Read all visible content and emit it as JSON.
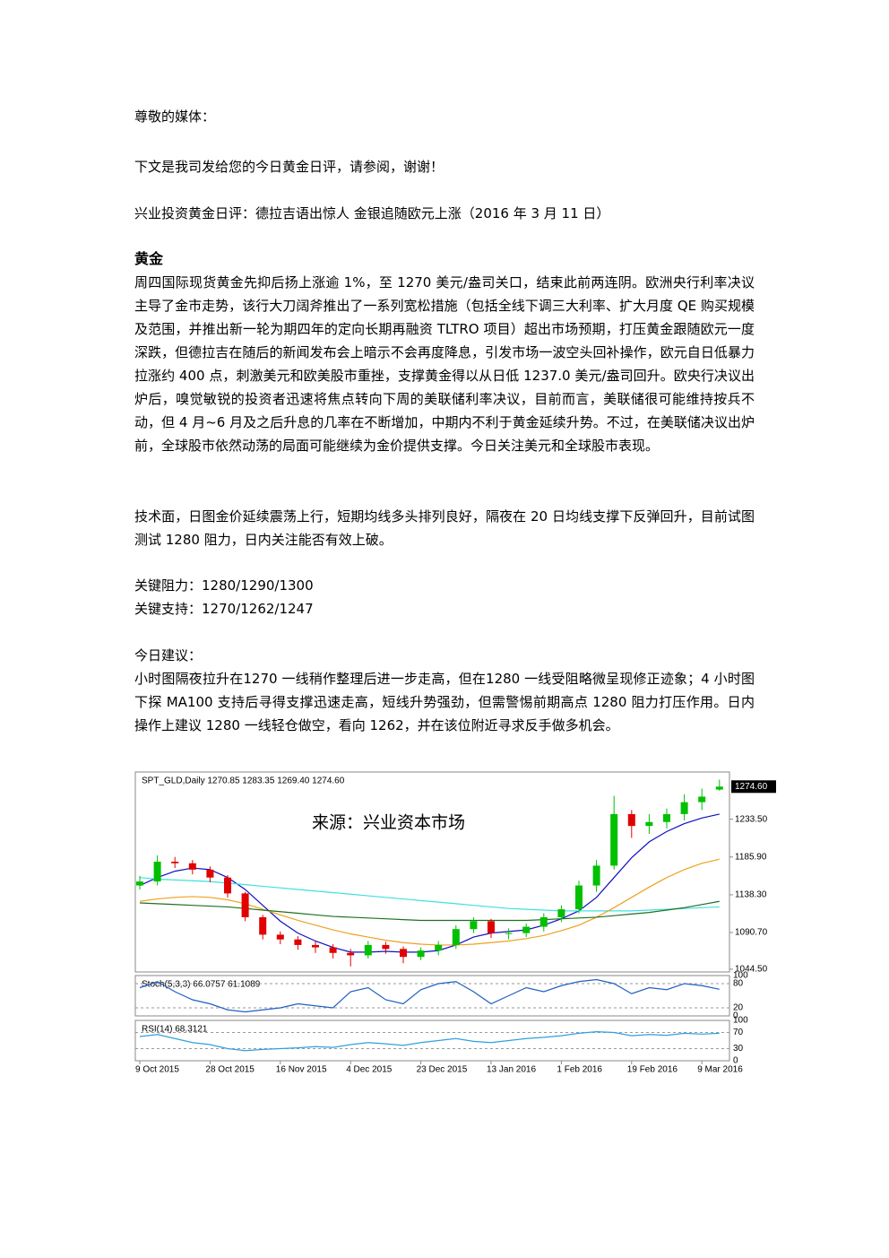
{
  "doc": {
    "greeting": "尊敬的媒体：",
    "intro": "下文是我司发给您的今日黄金日评，请参阅，谢谢！",
    "headline": "兴业投资黄金日评：德拉吉语出惊人 金银追随欧元上涨（2016 年 3 月 11 日）",
    "section_title": "黄金",
    "paragraphs": [
      "周四国际现货黄金先抑后扬上涨逾 1%，至 1270 美元/盎司关口，结束此前两连阴。欧洲央行利率决议主导了金市走势，该行大刀阔斧推出了一系列宽松措施（包括全线下调三大利率、扩大月度 QE 购买规模及范围，并推出新一轮为期四年的定向长期再融资 TLTRO 项目）超出市场预期，打压黄金跟随欧元一度深跌，但德拉吉在随后的新闻发布会上暗示不会再度降息，引发市场一波空头回补操作，欧元自日低暴力拉涨约 400 点，刺激美元和欧美股市重挫，支撑黄金得以从日低 1237.0 美元/盎司回升。欧央行决议出炉后，嗅觉敏锐的投资者迅速将焦点转向下周的美联储利率决议，目前而言，美联储很可能维持按兵不动，但 4 月~6 月及之后升息的几率在不断增加，中期内不利于黄金延续升势。不过，在美联储决议出炉前，全球股市依然动荡的局面可能继续为金价提供支撑。今日关注美元和全球股市表现。",
      "技术面，日图金价延续震荡上行，短期均线多头排列良好，隔夜在 20 日均线支撑下反弹回升，目前试图测试 1280 阻力，日内关注能否有效上破。"
    ],
    "key_resistance": "关键阻力：1280/1290/1300",
    "key_support": "关键支持：1270/1262/1247",
    "advice_title": "今日建议：",
    "advice": "小时图隔夜拉升在1270 一线稍作整理后进一步走高，但在1280 一线受阻略微呈现修正迹象；4 小时图下探 MA100 支持后寻得支撑迅速走高，短线升势强劲，但需警惕前期高点 1280 阻力打压作用。日内操作上建议 1280 一线轻仓做空，看向 1262，并在该位附近寻求反手做多机会。"
  },
  "chart_data": {
    "type": "candlestick",
    "header": "SPT_GLD,Daily  1270.85 1283.35 1269.40 1274.60",
    "watermark": "来源：兴业资本市场",
    "categories": [
      "9 Oct 2015",
      null,
      null,
      null,
      "28 Oct 2015",
      null,
      null,
      null,
      "16 Nov 2015",
      null,
      null,
      null,
      "4 Dec 2015",
      null,
      null,
      null,
      "23 Dec 2015",
      null,
      null,
      null,
      "13 Jan 2016",
      null,
      null,
      null,
      "1 Feb 2016",
      null,
      null,
      null,
      "19 Feb 2016",
      null,
      null,
      null,
      "9 Mar 2016",
      null
    ],
    "open": [
      1150,
      1155,
      1180,
      1178,
      1170,
      1160,
      1140,
      1110,
      1088,
      1082,
      1075,
      1072,
      1065,
      1062,
      1075,
      1070,
      1060,
      1068,
      1075,
      1095,
      1105,
      1090,
      1090,
      1098,
      1110,
      1120,
      1150,
      1175,
      1240,
      1225,
      1230,
      1240,
      1255,
      1270.85
    ],
    "high": [
      1162,
      1188,
      1186,
      1182,
      1174,
      1163,
      1142,
      1113,
      1092,
      1086,
      1080,
      1076,
      1070,
      1080,
      1079,
      1073,
      1072,
      1080,
      1100,
      1110,
      1108,
      1096,
      1102,
      1115,
      1125,
      1156,
      1182,
      1263,
      1245,
      1240,
      1247,
      1265,
      1272,
      1283.35
    ],
    "low": [
      1145,
      1150,
      1172,
      1164,
      1154,
      1135,
      1105,
      1082,
      1076,
      1069,
      1065,
      1058,
      1048,
      1058,
      1064,
      1052,
      1056,
      1062,
      1070,
      1090,
      1084,
      1082,
      1085,
      1092,
      1104,
      1115,
      1142,
      1170,
      1210,
      1215,
      1222,
      1232,
      1245,
      1269.4
    ],
    "close": [
      1155,
      1180,
      1178,
      1170,
      1160,
      1140,
      1110,
      1088,
      1082,
      1075,
      1072,
      1065,
      1062,
      1075,
      1070,
      1060,
      1068,
      1075,
      1095,
      1105,
      1090,
      1090,
      1098,
      1110,
      1120,
      1150,
      1175,
      1240,
      1225,
      1230,
      1240,
      1255,
      1262,
      1274.6
    ],
    "up_color": "#00c000",
    "down_color": "#e00000",
    "ylim": [
      1041,
      1293
    ],
    "yticks": [
      {
        "value": 1044.5,
        "label": "1044.50"
      },
      {
        "value": 1090.7,
        "label": "1090.70"
      },
      {
        "value": 1138.3,
        "label": "1138.30"
      },
      {
        "value": 1185.9,
        "label": "1185.90"
      },
      {
        "value": 1233.5,
        "label": "1233.50"
      }
    ],
    "last": {
      "value": 1274.6,
      "label": "1274.60"
    },
    "series": [
      {
        "color": "#1010c0",
        "values": [
          1150,
          1160,
          1168,
          1172,
          1170,
          1160,
          1145,
          1125,
          1105,
          1090,
          1080,
          1072,
          1066,
          1066,
          1067,
          1066,
          1066,
          1068,
          1075,
          1085,
          1090,
          1092,
          1094,
          1100,
          1108,
          1118,
          1135,
          1160,
          1185,
          1205,
          1218,
          1228,
          1235,
          1240
        ]
      },
      {
        "color": "#40e0e0",
        "values": [
          1160,
          1158,
          1157,
          1156,
          1155,
          1153,
          1151,
          1149,
          1147,
          1145,
          1143,
          1141,
          1139,
          1137,
          1135,
          1133,
          1131,
          1129,
          1127,
          1125,
          1123,
          1121,
          1120,
          1119,
          1118,
          1118,
          1118,
          1118,
          1118,
          1119,
          1120,
          1121,
          1122,
          1123
        ]
      },
      {
        "color": "#f0a020",
        "values": [
          1130,
          1133,
          1135,
          1136,
          1135,
          1132,
          1127,
          1120,
          1113,
          1106,
          1100,
          1094,
          1089,
          1085,
          1081,
          1078,
          1076,
          1075,
          1075,
          1076,
          1078,
          1080,
          1083,
          1087,
          1093,
          1100,
          1110,
          1122,
          1135,
          1148,
          1160,
          1170,
          1178,
          1183
        ]
      },
      {
        "color": "#207020",
        "values": [
          1128,
          1127,
          1126,
          1125,
          1124,
          1123,
          1121,
          1119,
          1117,
          1115,
          1113,
          1111,
          1110,
          1109,
          1108,
          1107,
          1106,
          1106,
          1106,
          1106,
          1106,
          1106,
          1106,
          1107,
          1108,
          1109,
          1110,
          1112,
          1114,
          1116,
          1119,
          1122,
          1126,
          1130
        ]
      }
    ],
    "stoch": {
      "label": "Stoch(5,3,3) 66.0757 61.1089",
      "color": "#2060c0",
      "ylim": [
        0,
        100
      ],
      "yticks": [
        0,
        20,
        80,
        100
      ],
      "values": [
        70,
        85,
        60,
        40,
        30,
        15,
        10,
        15,
        20,
        30,
        25,
        20,
        60,
        70,
        40,
        30,
        65,
        80,
        85,
        60,
        30,
        50,
        70,
        60,
        75,
        85,
        90,
        80,
        55,
        70,
        65,
        80,
        75,
        66
      ]
    },
    "rsi": {
      "label": "RSI(14) 68.3121",
      "color": "#30a0e0",
      "ylim": [
        0,
        100
      ],
      "yticks": [
        0,
        30,
        70,
        100
      ],
      "values": [
        60,
        65,
        55,
        45,
        40,
        30,
        25,
        28,
        30,
        32,
        35,
        33,
        40,
        45,
        42,
        38,
        45,
        50,
        55,
        48,
        45,
        50,
        55,
        58,
        62,
        68,
        72,
        70,
        62,
        65,
        63,
        68,
        66,
        68
      ]
    }
  }
}
